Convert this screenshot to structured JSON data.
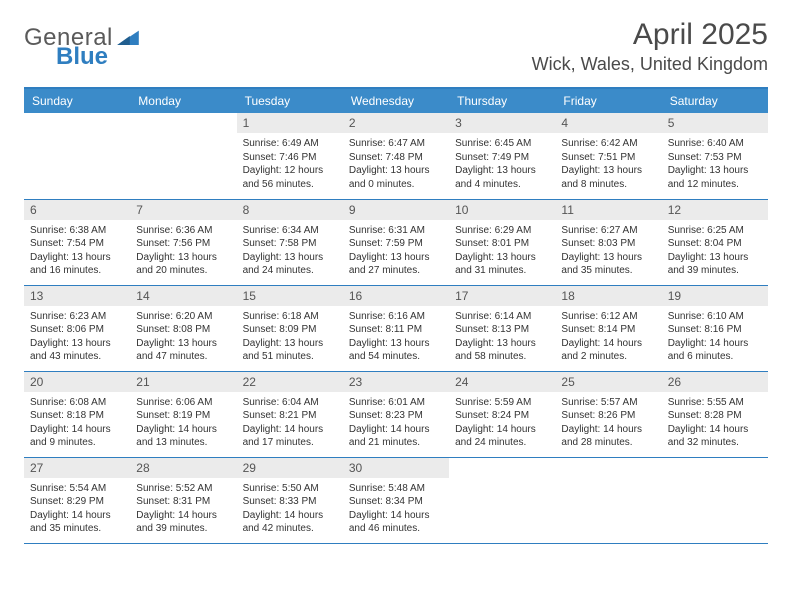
{
  "brand": {
    "word1": "General",
    "word2": "Blue"
  },
  "title": "April 2025",
  "location": "Wick, Wales, United Kingdom",
  "colors": {
    "header_bg": "#3b8bc9",
    "header_text": "#ffffff",
    "border": "#2f7ec0",
    "daynum_bg": "#ebebeb",
    "text": "#333333"
  },
  "weekdays": [
    "Sunday",
    "Monday",
    "Tuesday",
    "Wednesday",
    "Thursday",
    "Friday",
    "Saturday"
  ],
  "layout": {
    "rows": 5,
    "cols": 7,
    "first_weekday_index": 2,
    "days_in_month": 30
  },
  "days": {
    "1": {
      "sunrise": "6:49 AM",
      "sunset": "7:46 PM",
      "daylight": "12 hours and 56 minutes."
    },
    "2": {
      "sunrise": "6:47 AM",
      "sunset": "7:48 PM",
      "daylight": "13 hours and 0 minutes."
    },
    "3": {
      "sunrise": "6:45 AM",
      "sunset": "7:49 PM",
      "daylight": "13 hours and 4 minutes."
    },
    "4": {
      "sunrise": "6:42 AM",
      "sunset": "7:51 PM",
      "daylight": "13 hours and 8 minutes."
    },
    "5": {
      "sunrise": "6:40 AM",
      "sunset": "7:53 PM",
      "daylight": "13 hours and 12 minutes."
    },
    "6": {
      "sunrise": "6:38 AM",
      "sunset": "7:54 PM",
      "daylight": "13 hours and 16 minutes."
    },
    "7": {
      "sunrise": "6:36 AM",
      "sunset": "7:56 PM",
      "daylight": "13 hours and 20 minutes."
    },
    "8": {
      "sunrise": "6:34 AM",
      "sunset": "7:58 PM",
      "daylight": "13 hours and 24 minutes."
    },
    "9": {
      "sunrise": "6:31 AM",
      "sunset": "7:59 PM",
      "daylight": "13 hours and 27 minutes."
    },
    "10": {
      "sunrise": "6:29 AM",
      "sunset": "8:01 PM",
      "daylight": "13 hours and 31 minutes."
    },
    "11": {
      "sunrise": "6:27 AM",
      "sunset": "8:03 PM",
      "daylight": "13 hours and 35 minutes."
    },
    "12": {
      "sunrise": "6:25 AM",
      "sunset": "8:04 PM",
      "daylight": "13 hours and 39 minutes."
    },
    "13": {
      "sunrise": "6:23 AM",
      "sunset": "8:06 PM",
      "daylight": "13 hours and 43 minutes."
    },
    "14": {
      "sunrise": "6:20 AM",
      "sunset": "8:08 PM",
      "daylight": "13 hours and 47 minutes."
    },
    "15": {
      "sunrise": "6:18 AM",
      "sunset": "8:09 PM",
      "daylight": "13 hours and 51 minutes."
    },
    "16": {
      "sunrise": "6:16 AM",
      "sunset": "8:11 PM",
      "daylight": "13 hours and 54 minutes."
    },
    "17": {
      "sunrise": "6:14 AM",
      "sunset": "8:13 PM",
      "daylight": "13 hours and 58 minutes."
    },
    "18": {
      "sunrise": "6:12 AM",
      "sunset": "8:14 PM",
      "daylight": "14 hours and 2 minutes."
    },
    "19": {
      "sunrise": "6:10 AM",
      "sunset": "8:16 PM",
      "daylight": "14 hours and 6 minutes."
    },
    "20": {
      "sunrise": "6:08 AM",
      "sunset": "8:18 PM",
      "daylight": "14 hours and 9 minutes."
    },
    "21": {
      "sunrise": "6:06 AM",
      "sunset": "8:19 PM",
      "daylight": "14 hours and 13 minutes."
    },
    "22": {
      "sunrise": "6:04 AM",
      "sunset": "8:21 PM",
      "daylight": "14 hours and 17 minutes."
    },
    "23": {
      "sunrise": "6:01 AM",
      "sunset": "8:23 PM",
      "daylight": "14 hours and 21 minutes."
    },
    "24": {
      "sunrise": "5:59 AM",
      "sunset": "8:24 PM",
      "daylight": "14 hours and 24 minutes."
    },
    "25": {
      "sunrise": "5:57 AM",
      "sunset": "8:26 PM",
      "daylight": "14 hours and 28 minutes."
    },
    "26": {
      "sunrise": "5:55 AM",
      "sunset": "8:28 PM",
      "daylight": "14 hours and 32 minutes."
    },
    "27": {
      "sunrise": "5:54 AM",
      "sunset": "8:29 PM",
      "daylight": "14 hours and 35 minutes."
    },
    "28": {
      "sunrise": "5:52 AM",
      "sunset": "8:31 PM",
      "daylight": "14 hours and 39 minutes."
    },
    "29": {
      "sunrise": "5:50 AM",
      "sunset": "8:33 PM",
      "daylight": "14 hours and 42 minutes."
    },
    "30": {
      "sunrise": "5:48 AM",
      "sunset": "8:34 PM",
      "daylight": "14 hours and 46 minutes."
    }
  },
  "labels": {
    "sunrise": "Sunrise:",
    "sunset": "Sunset:",
    "daylight": "Daylight:"
  }
}
